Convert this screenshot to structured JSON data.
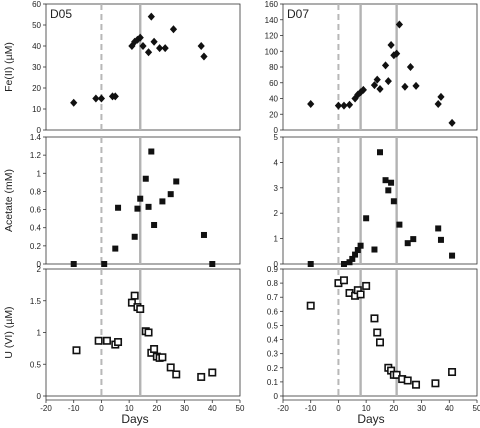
{
  "figure": {
    "xlabel": "Days",
    "x_ticks": [
      -20,
      -10,
      0,
      10,
      20,
      30,
      40,
      50
    ],
    "xlim": [
      -20,
      50
    ],
    "vline_colors": {
      "dashed": "#b8b8b8",
      "solid": "#b3b3b3"
    }
  },
  "chart_data": [
    {
      "type": "scatter",
      "panel": "D05",
      "row": "Fe(II)",
      "ylabel": "Fe(II) (µM)",
      "ylim": [
        0,
        60
      ],
      "y_ticks": [
        0,
        10,
        20,
        30,
        40,
        50,
        60
      ],
      "marker": "filled-diamond",
      "x": [
        -10,
        -2,
        0,
        4,
        5,
        11,
        12,
        13,
        14,
        15,
        17,
        18,
        19,
        21,
        23,
        26,
        36,
        37
      ],
      "y": [
        13,
        15,
        15,
        16,
        16,
        40,
        42,
        43,
        44,
        40,
        37,
        54,
        42,
        39,
        39,
        48,
        40,
        35
      ],
      "reference_lines": {
        "dashed_x": 0,
        "solid_x": [
          14
        ]
      }
    },
    {
      "type": "scatter",
      "panel": "D07",
      "row": "Fe(II)",
      "ylabel": "",
      "ylim": [
        0,
        160
      ],
      "y_ticks": [
        0,
        20,
        40,
        60,
        80,
        100,
        120,
        140,
        160
      ],
      "marker": "filled-diamond",
      "x": [
        -10,
        0,
        2,
        4,
        6,
        7,
        8,
        9,
        13,
        14,
        15,
        17,
        18,
        19,
        20,
        21,
        22,
        24,
        26,
        28,
        36,
        37,
        41
      ],
      "y": [
        33,
        31,
        31,
        32,
        40,
        45,
        48,
        51,
        57,
        64,
        52,
        82,
        62,
        108,
        95,
        97,
        134,
        55,
        80,
        56,
        33,
        42,
        9
      ],
      "reference_lines": {
        "dashed_x": 0,
        "solid_x": [
          8,
          21
        ]
      }
    },
    {
      "type": "scatter",
      "panel": "D05",
      "row": "Acetate",
      "ylabel": "Acetate (mM)",
      "ylim": [
        0,
        1.4
      ],
      "y_ticks": [
        0,
        0.2,
        0.4,
        0.6,
        0.8,
        1.0,
        1.2,
        1.4
      ],
      "marker": "filled-square",
      "x": [
        -10,
        1,
        5,
        6,
        12,
        13,
        14,
        16,
        17,
        18,
        19,
        22,
        25,
        27,
        37,
        40
      ],
      "y": [
        0,
        0,
        0.17,
        0.62,
        0.3,
        0.61,
        0.72,
        0.94,
        0.63,
        1.24,
        0.43,
        0.69,
        0.77,
        0.91,
        0.32,
        0
      ],
      "reference_lines": {
        "dashed_x": 0,
        "solid_x": [
          14
        ]
      }
    },
    {
      "type": "scatter",
      "panel": "D07",
      "row": "Acetate",
      "ylabel": "",
      "ylim": [
        0,
        5
      ],
      "y_ticks": [
        0,
        1,
        2,
        3,
        4,
        5
      ],
      "marker": "filled-square",
      "x": [
        -10,
        2,
        4,
        5,
        6,
        7,
        8,
        10,
        13,
        15,
        17,
        18,
        19,
        20,
        22,
        25,
        27,
        36,
        37,
        41
      ],
      "y": [
        0,
        0,
        0.07,
        0.2,
        0.37,
        0.55,
        0.72,
        1.8,
        0.57,
        4.4,
        3.3,
        2.9,
        3.2,
        2.47,
        1.55,
        0.82,
        0.98,
        1.4,
        0.95,
        0.33
      ],
      "reference_lines": {
        "dashed_x": 0,
        "solid_x": [
          8,
          21
        ]
      }
    },
    {
      "type": "scatter",
      "panel": "D05",
      "row": "U(VI)",
      "ylabel": "U (VI) (µM)",
      "ylim": [
        0,
        2
      ],
      "y_ticks": [
        0,
        0.5,
        1,
        1.5,
        2
      ],
      "marker": "open-square",
      "x": [
        -9,
        -1,
        2,
        5,
        6,
        11,
        12,
        13,
        14,
        16,
        17,
        18,
        19,
        20,
        21,
        22,
        25,
        27,
        36,
        40
      ],
      "y": [
        0.72,
        0.87,
        0.87,
        0.81,
        0.85,
        1.47,
        1.58,
        1.4,
        1.37,
        1.02,
        1.0,
        0.68,
        0.74,
        0.62,
        0.6,
        0.61,
        0.45,
        0.34,
        0.3,
        0.37
      ],
      "reference_lines": {
        "dashed_x": 0,
        "solid_x": [
          14
        ]
      }
    },
    {
      "type": "scatter",
      "panel": "D07",
      "row": "U(VI)",
      "ylabel": "",
      "ylim": [
        0,
        0.9
      ],
      "y_ticks": [
        0,
        0.1,
        0.2,
        0.3,
        0.4,
        0.5,
        0.6,
        0.7,
        0.8,
        0.9
      ],
      "marker": "open-square",
      "x": [
        -10,
        0,
        2,
        4,
        6,
        7,
        8,
        10,
        13,
        14,
        15,
        18,
        19,
        20,
        21,
        23,
        25,
        28,
        35,
        41
      ],
      "y": [
        0.64,
        0.8,
        0.82,
        0.73,
        0.71,
        0.75,
        0.72,
        0.78,
        0.55,
        0.45,
        0.38,
        0.2,
        0.18,
        0.15,
        0.15,
        0.12,
        0.11,
        0.08,
        0.09,
        0.17
      ],
      "reference_lines": {
        "dashed_x": 0,
        "solid_x": [
          8,
          21
        ]
      }
    }
  ]
}
